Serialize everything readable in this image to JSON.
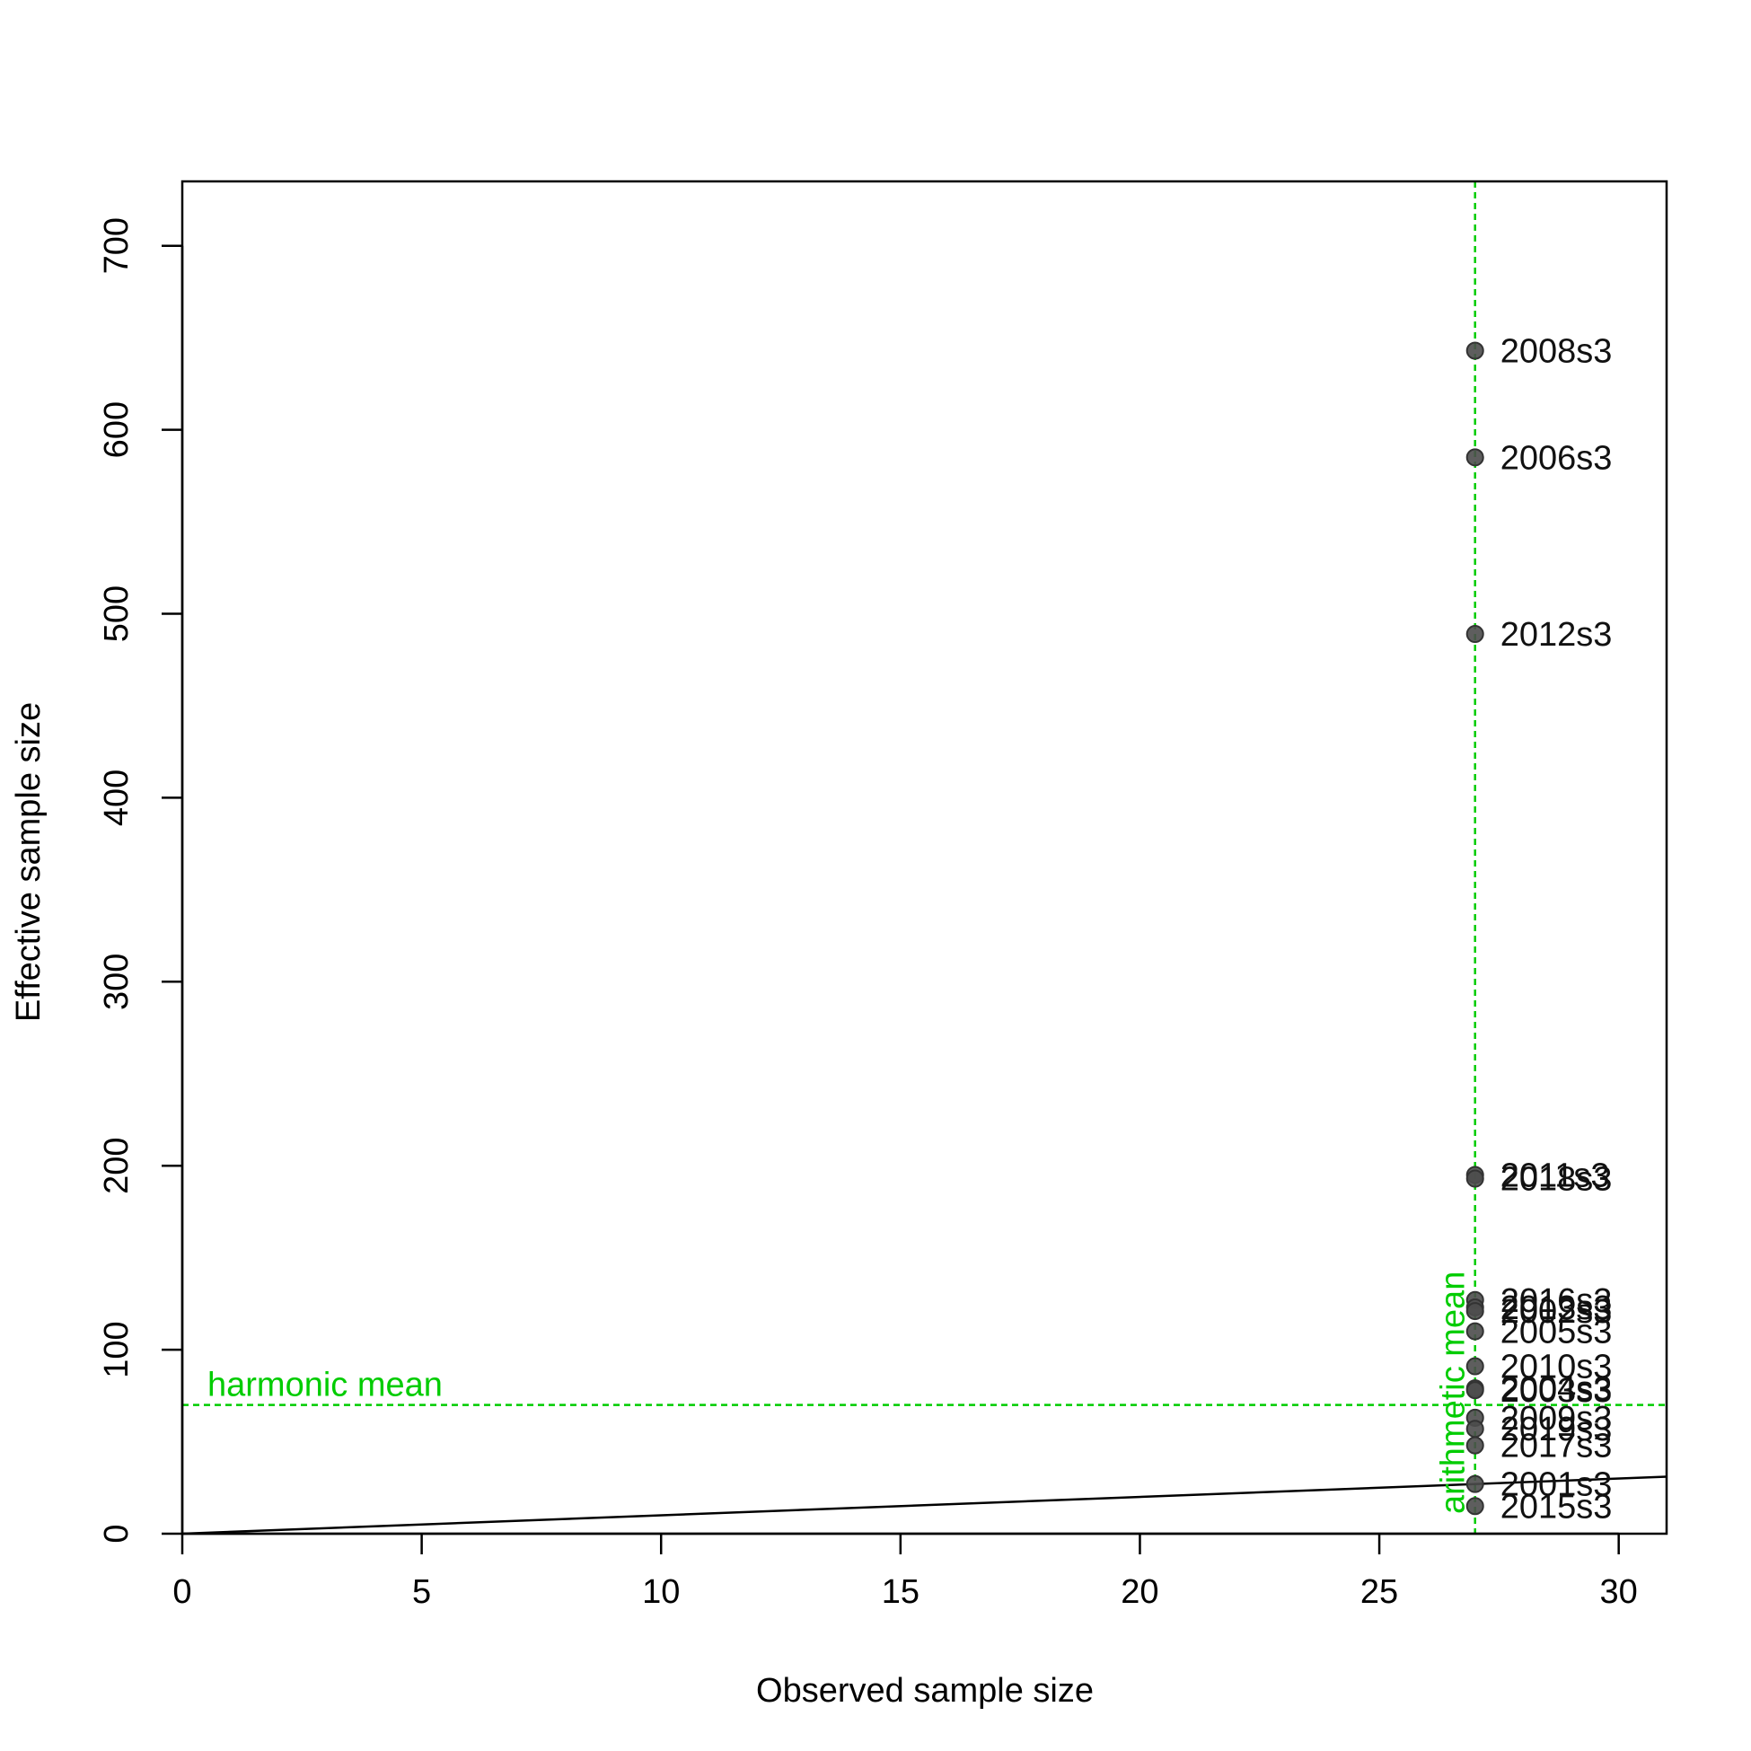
{
  "chart_data": {
    "type": "scatter",
    "title": "",
    "xlabel": "Observed sample size",
    "ylabel": "Effective sample size",
    "xlim": [
      0,
      31
    ],
    "ylim": [
      0,
      735
    ],
    "xticks": [
      0,
      5,
      10,
      15,
      20,
      25,
      30
    ],
    "yticks": [
      0,
      100,
      200,
      300,
      400,
      500,
      600,
      700
    ],
    "grid": false,
    "legend": "none",
    "point_color": "#4d4d4d",
    "reference_color": "#00cc00",
    "series": [
      {
        "points": [
          {
            "label": "2008s3",
            "x": 27,
            "y": 643
          },
          {
            "label": "2006s3",
            "x": 27,
            "y": 585
          },
          {
            "label": "2012s3",
            "x": 27,
            "y": 489
          },
          {
            "label": "2011s3",
            "x": 27,
            "y": 195
          },
          {
            "label": "2018s3",
            "x": 27,
            "y": 193
          },
          {
            "label": "2016s3",
            "x": 27,
            "y": 127
          },
          {
            "label": "2013s3",
            "x": 27,
            "y": 123
          },
          {
            "label": "2002s3",
            "x": 27,
            "y": 121
          },
          {
            "label": "2005s3",
            "x": 27,
            "y": 110
          },
          {
            "label": "2010s3",
            "x": 27,
            "y": 91
          },
          {
            "label": "2004s3",
            "x": 27,
            "y": 79
          },
          {
            "label": "2003s3",
            "x": 27,
            "y": 78
          },
          {
            "label": "2009s3",
            "x": 27,
            "y": 63
          },
          {
            "label": "2019s3",
            "x": 27,
            "y": 57
          },
          {
            "label": "2017s3",
            "x": 27,
            "y": 48
          },
          {
            "label": "2001s3",
            "x": 27,
            "y": 27
          },
          {
            "label": "2015s3",
            "x": 27,
            "y": 15
          }
        ]
      }
    ],
    "reference_lines": {
      "identity_line": {
        "slope": 1,
        "intercept": 0
      },
      "harmonic_mean": {
        "label": "harmonic mean",
        "y": 70
      },
      "arithmetic_mean": {
        "label": "arithmetic mean",
        "x": 27
      }
    }
  }
}
